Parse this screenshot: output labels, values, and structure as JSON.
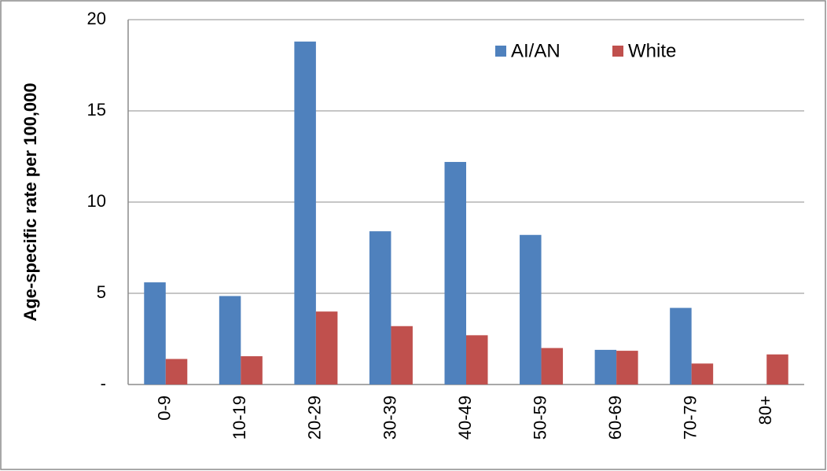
{
  "chart_data": {
    "type": "bar",
    "y_label": "Age-specific rate per 100,000",
    "categories": [
      "0-9",
      "10-19",
      "20-29",
      "30-39",
      "40-49",
      "50-59",
      "60-69",
      "70-79",
      "80+"
    ],
    "series": [
      {
        "name": "AI/AN",
        "color": "#4f81bd",
        "values": [
          5.6,
          4.85,
          18.8,
          8.4,
          12.2,
          8.2,
          1.9,
          4.2,
          null
        ]
      },
      {
        "name": "White",
        "color": "#c0504d",
        "values": [
          1.4,
          1.55,
          4.0,
          3.2,
          2.7,
          2.0,
          1.85,
          1.15,
          1.65
        ]
      }
    ],
    "ylim": [
      0,
      20
    ],
    "yticks": [
      {
        "value": 0,
        "label": "-"
      },
      5,
      10,
      15,
      20
    ],
    "grid": true,
    "legend": "top-right"
  }
}
